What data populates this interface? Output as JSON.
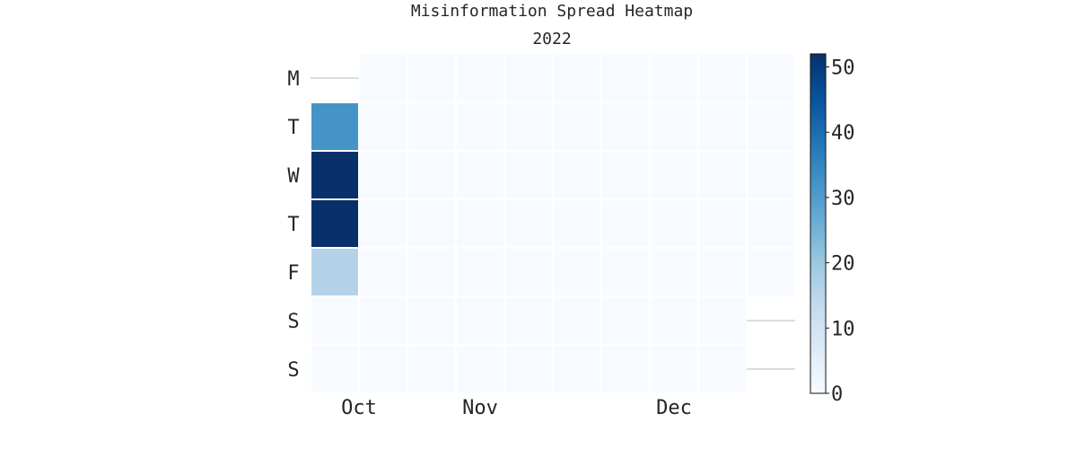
{
  "chart_data": {
    "type": "heatmap",
    "title": "Misinformation Spread Heatmap",
    "subtitle": "2022",
    "weekday_labels": [
      "M",
      "T",
      "W",
      "T",
      "F",
      "S",
      "S"
    ],
    "month_labels": [
      {
        "label": "Oct",
        "week": 1
      },
      {
        "label": "Nov",
        "week": 3.5
      },
      {
        "label": "Dec",
        "week": 7.5
      }
    ],
    "weeks": 10,
    "first_day_index": 1,
    "last_day_index": 4,
    "values": [
      [
        null,
        0,
        0,
        0,
        0,
        0,
        0,
        0,
        0,
        0
      ],
      [
        32,
        0,
        0,
        0,
        0,
        0,
        0,
        0,
        0,
        0
      ],
      [
        52,
        0,
        0,
        0,
        0,
        0,
        0,
        0,
        0,
        0
      ],
      [
        52,
        0,
        0,
        0,
        0,
        0,
        0,
        0,
        0,
        0
      ],
      [
        16,
        0,
        0,
        0,
        0,
        0,
        0,
        0,
        0,
        0
      ],
      [
        0,
        0,
        0,
        0,
        0,
        0,
        0,
        0,
        0,
        null
      ],
      [
        0,
        0,
        0,
        0,
        0,
        0,
        0,
        0,
        0,
        null
      ]
    ],
    "colorbar": {
      "min": 0,
      "max": 52,
      "ticks": [
        0,
        10,
        20,
        30,
        40,
        50
      ],
      "colormap": "Blues"
    }
  }
}
